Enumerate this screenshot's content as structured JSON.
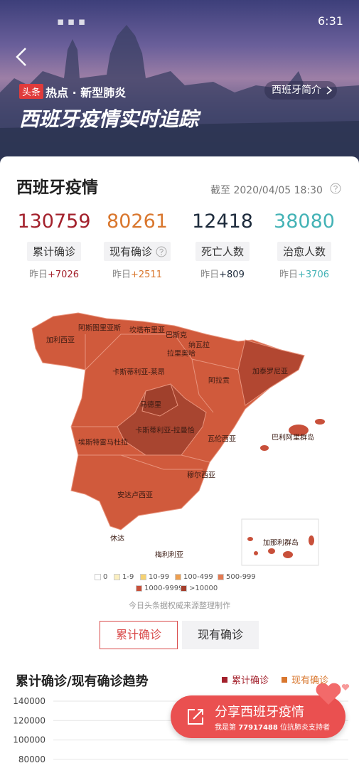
{
  "status_bar": {
    "time": "6:31"
  },
  "header": {
    "tag": "头条",
    "topic": "热点 · 新型肺炎",
    "title": "西班牙疫情实时追踪",
    "intro_link": "西班牙简介"
  },
  "summary": {
    "title": "西班牙疫情",
    "updated": "截至 2020/04/05 18:30",
    "yesterday": "昨日",
    "stats": [
      {
        "value": "130759",
        "label": "累计确诊",
        "delta": "+7026",
        "color": "#a3212c"
      },
      {
        "value": "80261",
        "label": "现有确诊",
        "delta": "+2511",
        "color": "#d9772e"
      },
      {
        "value": "12418",
        "label": "死亡人数",
        "delta": "+809",
        "color": "#1d2b3c"
      },
      {
        "value": "38080",
        "label": "治愈人数",
        "delta": "+3706",
        "color": "#44b3b6"
      }
    ]
  },
  "map": {
    "regions": [
      "阿斯图里亚斯",
      "坎塔布里亚",
      "巴斯克",
      "加利西亚",
      "纳瓦拉",
      "拉里奥哈",
      "卡斯蒂利亚-莱昂",
      "加泰罗尼亚",
      "阿拉贡",
      "马德里",
      "卡斯蒂利亚-拉曼恰",
      "埃斯特雷马杜拉",
      "瓦伦西亚",
      "巴利阿里群岛",
      "穆尔西亚",
      "安达卢西亚",
      "休达",
      "梅利利亚",
      "加那利群岛"
    ],
    "legend": [
      {
        "label": "0",
        "color": "#ffffff"
      },
      {
        "label": "1-9",
        "color": "#fbefc0"
      },
      {
        "label": "10-99",
        "color": "#f5d272"
      },
      {
        "label": "100-499",
        "color": "#ee9f4f"
      },
      {
        "label": "500-999",
        "color": "#e47a52"
      },
      {
        "label": "1000-9999",
        "color": "#c8503a"
      },
      {
        "label": ">10000",
        "color": "#a43e2c"
      }
    ],
    "source": "今日头条据权威来源整理制作"
  },
  "tabs": [
    "累计确诊",
    "现有确诊"
  ],
  "trend": {
    "title": "累计确诊/现有确诊趋势",
    "legend": [
      {
        "name": "累计确诊",
        "color": "#a3212c"
      },
      {
        "name": "现有确诊",
        "color": "#d9772e"
      }
    ],
    "yticks": [
      140000,
      120000,
      100000,
      80000
    ]
  },
  "share": {
    "title": "分享西班牙疫情",
    "before": "我是第",
    "count": "77917488",
    "after": "位抗肺炎支持者"
  }
}
